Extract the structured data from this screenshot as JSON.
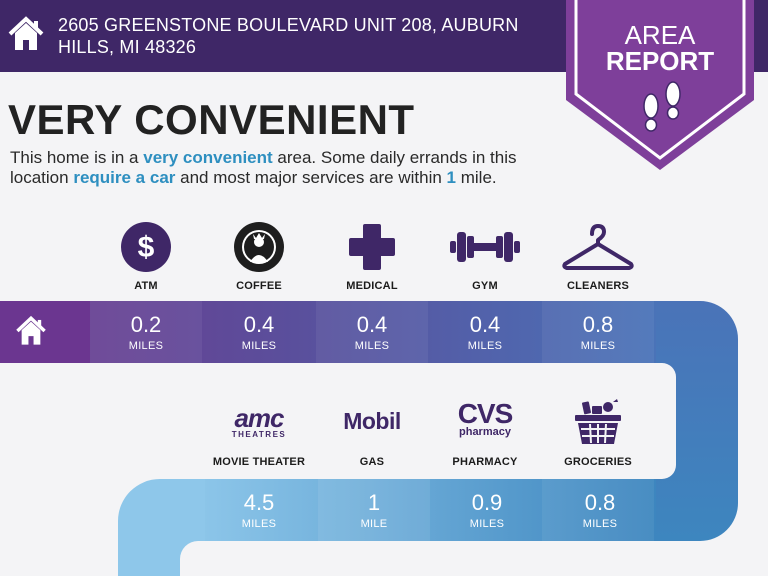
{
  "address": "2605 GREENSTONE BOULEVARD UNIT 208, AUBURN HILLS, MI 48326",
  "badge": {
    "line1": "AREA",
    "line2": "REPORT"
  },
  "headline": "VERY CONVENIENT",
  "description": {
    "p1": "This home is in a ",
    "h1": "very convenient",
    "p2": " area. Some daily errands in this location ",
    "h2": "require a car",
    "p3": " and most major services are within ",
    "h3": "1",
    "p4": " mile."
  },
  "row1": [
    {
      "label": "ATM",
      "value": "0.2",
      "unit": "MILES",
      "icon": "dollar-icon"
    },
    {
      "label": "COFFEE",
      "value": "0.4",
      "unit": "MILES",
      "icon": "starbucks-logo"
    },
    {
      "label": "MEDICAL",
      "value": "0.4",
      "unit": "MILES",
      "icon": "medical-cross-icon"
    },
    {
      "label": "GYM",
      "value": "0.4",
      "unit": "MILES",
      "icon": "dumbbell-icon"
    },
    {
      "label": "CLEANERS",
      "value": "0.8",
      "unit": "MILES",
      "icon": "hanger-icon"
    }
  ],
  "row2": [
    {
      "label": "MOVIE THEATER",
      "value": "4.5",
      "unit": "MILES",
      "icon": "amc-logo",
      "logo_text": "amc",
      "logo_sub": "THEATRES"
    },
    {
      "label": "GAS",
      "value": "1",
      "unit": "MILE",
      "icon": "mobil-logo",
      "logo_text": "Mobil"
    },
    {
      "label": "PHARMACY",
      "value": "0.9",
      "unit": "MILES",
      "icon": "cvs-logo",
      "logo_text": "CVS",
      "logo_sub": "pharmacy"
    },
    {
      "label": "GROCERIES",
      "value": "0.8",
      "unit": "MILES",
      "icon": "grocery-basket-icon"
    }
  ],
  "colors": {
    "header": "#3f2767",
    "badge": "#7e3f9a",
    "icon_purple": "#3f2767",
    "highlight": "#2e8fc0"
  }
}
